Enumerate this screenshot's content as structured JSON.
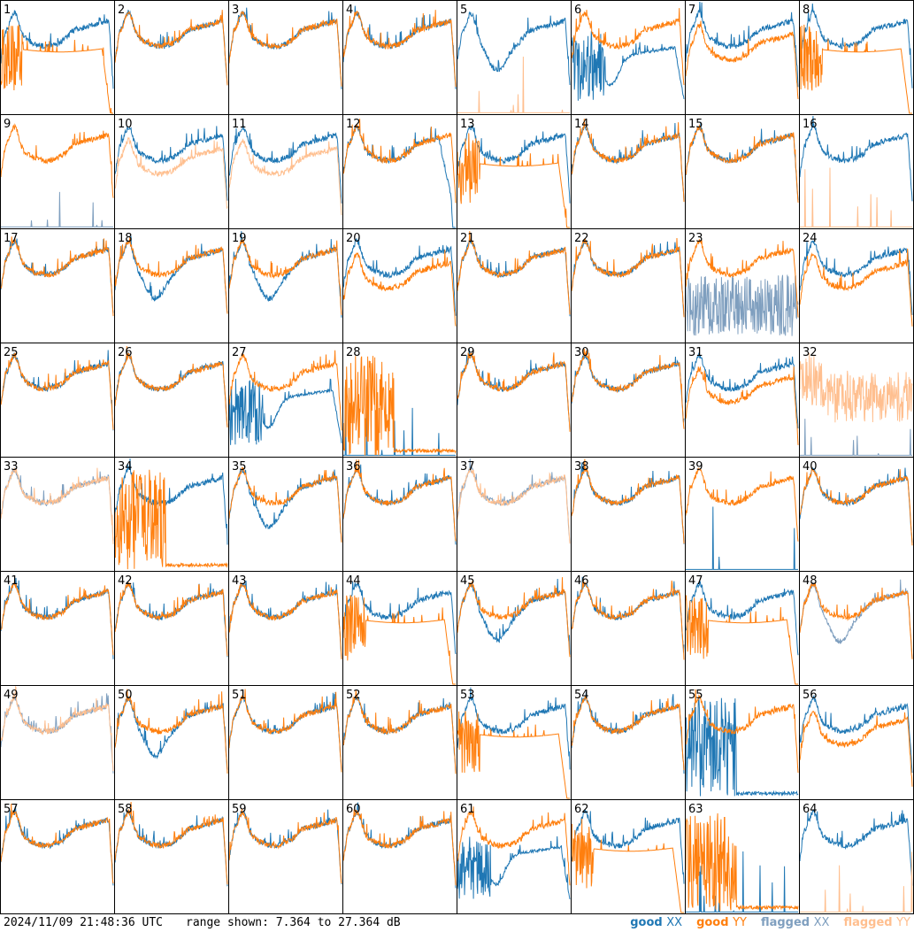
{
  "chart_data": {
    "type": "line",
    "layout": "grid",
    "rows": 8,
    "cols": 8,
    "panel_labels": [
      "1",
      "2",
      "3",
      "4",
      "5",
      "6",
      "7",
      "8",
      "9",
      "10",
      "11",
      "12",
      "13",
      "14",
      "15",
      "16",
      "17",
      "18",
      "19",
      "20",
      "21",
      "22",
      "23",
      "24",
      "25",
      "26",
      "27",
      "28",
      "29",
      "30",
      "31",
      "32",
      "33",
      "34",
      "35",
      "36",
      "37",
      "38",
      "39",
      "40",
      "41",
      "42",
      "43",
      "44",
      "45",
      "46",
      "47",
      "48",
      "49",
      "50",
      "51",
      "52",
      "53",
      "54",
      "55",
      "56",
      "57",
      "58",
      "59",
      "60",
      "61",
      "62",
      "63",
      "64"
    ],
    "y_range_db": [
      7.364,
      27.364
    ],
    "series_colors": {
      "good_xx": "#1f77b4",
      "good_yy": "#ff7f0e",
      "flagged_xx": "#7f9fbf",
      "flagged_yy": "#ffbf8f"
    },
    "panels": {
      "1": {
        "xx": "good",
        "yy": "good",
        "xx_shape": "normal",
        "yy_shape": "droop",
        "yy_spiky": true
      },
      "2": {
        "xx": "good",
        "yy": "good"
      },
      "3": {
        "xx": "good",
        "yy": "good"
      },
      "4": {
        "xx": "good",
        "yy": "good"
      },
      "5": {
        "xx": "good",
        "yy": "flagged",
        "xx_shape": "dip",
        "yy_shape": "floor"
      },
      "6": {
        "xx": "good",
        "yy": "good",
        "xx_shape": "deep-dip",
        "yy_shape": "normal"
      },
      "7": {
        "xx": "good",
        "yy": "good",
        "xx_shape": "normal",
        "yy_shape": "mid-lower"
      },
      "8": {
        "xx": "good",
        "yy": "good",
        "xx_shape": "normal",
        "yy_shape": "droop"
      },
      "9": {
        "xx": "flagged",
        "yy": "good",
        "xx_shape": "floor",
        "yy_shape": "normal"
      },
      "10": {
        "xx": "good",
        "yy": "flagged",
        "xx_shape": "normal",
        "yy_shape": "mid-lower"
      },
      "11": {
        "xx": "good",
        "yy": "flagged",
        "xx_shape": "normal",
        "yy_shape": "mid-lower"
      },
      "12": {
        "xx": "good",
        "yy": "good",
        "xx_shape": "drop-end",
        "yy_shape": "normal"
      },
      "13": {
        "xx": "good",
        "yy": "good",
        "xx_shape": "normal",
        "yy_shape": "droop"
      },
      "14": {
        "xx": "good",
        "yy": "good"
      },
      "15": {
        "xx": "good",
        "yy": "good"
      },
      "16": {
        "xx": "good",
        "yy": "flagged",
        "xx_shape": "normal",
        "yy_shape": "floor"
      },
      "17": {
        "xx": "good",
        "yy": "good"
      },
      "18": {
        "xx": "good",
        "yy": "good",
        "xx_shape": "dip",
        "yy_shape": "normal"
      },
      "19": {
        "xx": "good",
        "yy": "good",
        "xx_shape": "dip",
        "yy_shape": "normal"
      },
      "20": {
        "xx": "good",
        "yy": "good",
        "xx_shape": "normal",
        "yy_shape": "mid-lower"
      },
      "21": {
        "xx": "good",
        "yy": "good"
      },
      "22": {
        "xx": "good",
        "yy": "good"
      },
      "23": {
        "xx": "flagged",
        "yy": "good",
        "xx_shape": "noise",
        "yy_shape": "normal"
      },
      "24": {
        "xx": "good",
        "yy": "good",
        "xx_shape": "normal",
        "yy_shape": "mid-lower"
      },
      "25": {
        "xx": "good",
        "yy": "good"
      },
      "26": {
        "xx": "good",
        "yy": "good"
      },
      "27": {
        "xx": "good",
        "yy": "good",
        "xx_shape": "deep-dip",
        "yy_shape": "normal"
      },
      "28": {
        "xx": "good",
        "yy": "good",
        "xx_shape": "floor",
        "yy_shape": "noise-left"
      },
      "29": {
        "xx": "good",
        "yy": "good"
      },
      "30": {
        "xx": "good",
        "yy": "good"
      },
      "31": {
        "xx": "good",
        "yy": "good",
        "xx_shape": "normal",
        "yy_shape": "mid-lower"
      },
      "32": {
        "xx": "flagged",
        "yy": "flagged",
        "xx_shape": "floor",
        "yy_shape": "noise-high"
      },
      "33": {
        "xx": "flagged",
        "yy": "flagged"
      },
      "34": {
        "xx": "good",
        "yy": "good",
        "xx_shape": "normal",
        "yy_shape": "noise-left"
      },
      "35": {
        "xx": "good",
        "yy": "good",
        "xx_shape": "dip",
        "yy_shape": "normal"
      },
      "36": {
        "xx": "good",
        "yy": "good"
      },
      "37": {
        "xx": "flagged",
        "yy": "flagged"
      },
      "38": {
        "xx": "good",
        "yy": "good"
      },
      "39": {
        "xx": "good",
        "yy": "good",
        "xx_shape": "floor",
        "yy_shape": "normal"
      },
      "40": {
        "xx": "good",
        "yy": "good"
      },
      "41": {
        "xx": "good",
        "yy": "good"
      },
      "42": {
        "xx": "good",
        "yy": "good"
      },
      "43": {
        "xx": "good",
        "yy": "good"
      },
      "44": {
        "xx": "good",
        "yy": "good",
        "xx_shape": "normal",
        "yy_shape": "droop"
      },
      "45": {
        "xx": "good",
        "yy": "good",
        "xx_shape": "dip",
        "yy_shape": "normal"
      },
      "46": {
        "xx": "good",
        "yy": "good"
      },
      "47": {
        "xx": "good",
        "yy": "good",
        "xx_shape": "normal",
        "yy_shape": "droop"
      },
      "48": {
        "xx": "flagged",
        "yy": "good",
        "xx_shape": "dip",
        "yy_shape": "normal"
      },
      "49": {
        "xx": "flagged",
        "yy": "flagged"
      },
      "50": {
        "xx": "good",
        "yy": "good",
        "xx_shape": "dip",
        "yy_shape": "normal"
      },
      "51": {
        "xx": "good",
        "yy": "good"
      },
      "52": {
        "xx": "good",
        "yy": "good"
      },
      "53": {
        "xx": "good",
        "yy": "good",
        "xx_shape": "normal",
        "yy_shape": "droop"
      },
      "54": {
        "xx": "good",
        "yy": "good"
      },
      "55": {
        "xx": "good",
        "yy": "good",
        "xx_shape": "noise-left",
        "yy_shape": "normal"
      },
      "56": {
        "xx": "good",
        "yy": "good",
        "xx_shape": "normal",
        "yy_shape": "mid-lower"
      },
      "57": {
        "xx": "good",
        "yy": "good"
      },
      "58": {
        "xx": "good",
        "yy": "good"
      },
      "59": {
        "xx": "good",
        "yy": "good"
      },
      "60": {
        "xx": "good",
        "yy": "good"
      },
      "61": {
        "xx": "good",
        "yy": "good",
        "xx_shape": "deep-dip",
        "yy_shape": "normal"
      },
      "62": {
        "xx": "good",
        "yy": "good",
        "xx_shape": "normal",
        "yy_shape": "droop"
      },
      "63": {
        "xx": "good",
        "yy": "good",
        "xx_shape": "floor",
        "yy_shape": "noise-left"
      },
      "64": {
        "xx": "good",
        "yy": "flagged",
        "xx_shape": "normal",
        "yy_shape": "floor"
      }
    }
  },
  "footer": {
    "timestamp": "2024/11/09 21:48:36 UTC",
    "range_text": "range shown: 7.364 to 27.364 dB",
    "legend": [
      {
        "word": "good",
        "pol": "XX",
        "color": "#1f77b4"
      },
      {
        "word": "good",
        "pol": "YY",
        "color": "#ff7f0e"
      },
      {
        "word": "flagged",
        "pol": "XX",
        "color": "#7f9fbf"
      },
      {
        "word": "flagged",
        "pol": "YY",
        "color": "#ffbf8f"
      }
    ]
  }
}
